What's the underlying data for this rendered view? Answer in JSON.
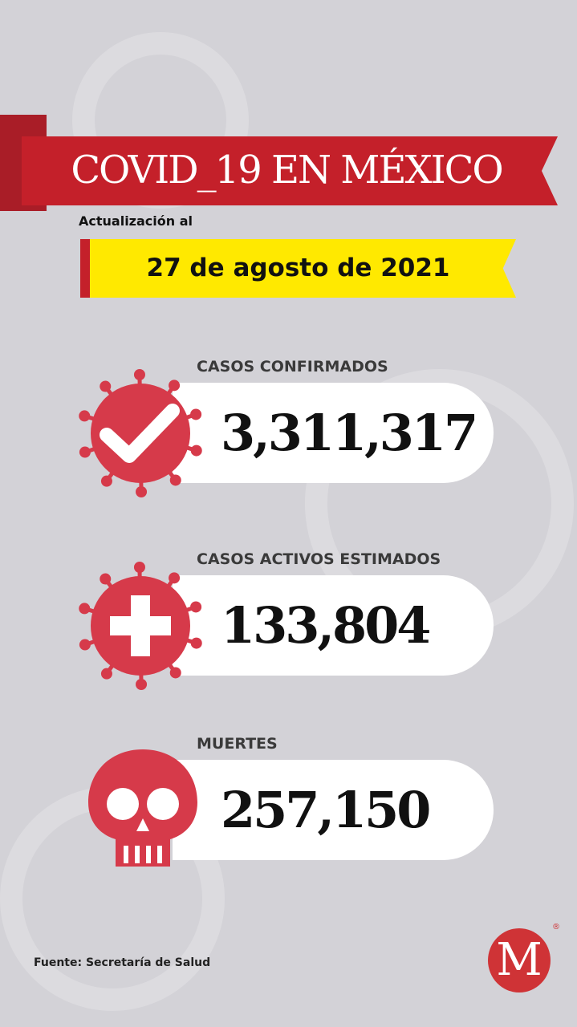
{
  "header": {
    "title": "COVID_19 EN MÉXICO",
    "update_label": "Actualización al",
    "date": "27 de agosto de 2021"
  },
  "stats": [
    {
      "label": "CASOS CONFIRMADOS",
      "value": "3,311,317",
      "icon": "virus-check-icon"
    },
    {
      "label": "CASOS ACTIVOS ESTIMADOS",
      "value": "133,804",
      "icon": "virus-plus-icon"
    },
    {
      "label": "MUERTES",
      "value": "257,150",
      "icon": "skull-icon"
    }
  ],
  "footer": {
    "source": "Fuente: Secretaría de Salud",
    "logo_letter": "M",
    "logo_mark": "®"
  },
  "colors": {
    "red": "#c4202a",
    "yellow": "#ffe900",
    "icon_red": "#d63a4a",
    "background": "#d3d2d7"
  }
}
